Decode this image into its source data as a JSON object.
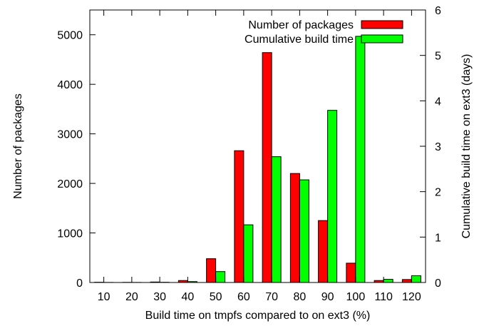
{
  "chart_data": {
    "type": "bar",
    "xlabel": "Build time on tmpfs compared to on ext3 (%)",
    "ylabel": "Number of packages",
    "y2label": "Cumulative build time on ext3 (days)",
    "categories": [
      "10",
      "20",
      "30",
      "40",
      "50",
      "60",
      "70",
      "80",
      "90",
      "100",
      "110",
      "120"
    ],
    "ylim": [
      0,
      5500
    ],
    "y2lim": [
      0,
      6
    ],
    "yticks": [
      0,
      1000,
      2000,
      3000,
      4000,
      5000
    ],
    "y2ticks": [
      0,
      1,
      2,
      3,
      4,
      5,
      6
    ],
    "legend": "top-right",
    "grid": false,
    "series": [
      {
        "name": "Number of packages",
        "axis": "left",
        "color": "#ff0000",
        "values": [
          5,
          3,
          10,
          40,
          480,
          2660,
          4640,
          2200,
          1250,
          390,
          40,
          60
        ]
      },
      {
        "name": "Cumulative build time",
        "axis": "right",
        "color": "#00ff00",
        "values": [
          0.002,
          0.002,
          0.005,
          0.02,
          0.24,
          1.27,
          2.77,
          2.26,
          3.79,
          5.42,
          0.07,
          0.15
        ]
      }
    ]
  }
}
